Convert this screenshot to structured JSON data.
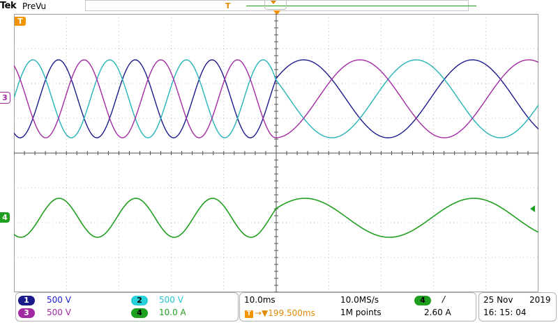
{
  "header": {
    "brand": "Tek",
    "mode": "PreVu",
    "record_trigger_glyph": "T"
  },
  "screen": {
    "trigger_badge": "T",
    "ch3_ref_label": "3",
    "ch4_ref_label": "4",
    "colors": {
      "ch1": "#1a1a8c",
      "ch2": "#25b3b8",
      "ch3": "#a12aa3",
      "ch4": "#1f9e1f",
      "trigger": "#f29300",
      "grid": "#b8b8b8"
    }
  },
  "channels": [
    {
      "id": "1",
      "scale": "500 V",
      "color": "#1a1a8c",
      "text_color": "#1a1acc",
      "badge_text_color": "#ffffff"
    },
    {
      "id": "2",
      "scale": "500 V",
      "color": "#25d0d6",
      "text_color": "#22c4cc",
      "badge_text_color": "#000000"
    },
    {
      "id": "3",
      "scale": "500 V",
      "color": "#a12aa3",
      "text_color": "#a12aa3",
      "badge_text_color": "#ffffff"
    },
    {
      "id": "4",
      "scale": "10.0 A",
      "color": "#1f9e1f",
      "text_color": "#1f9e1f",
      "badge_text_color": "#000000"
    }
  ],
  "horizontal": {
    "time_div": "10.0ms",
    "trigger_position": "199.500ms",
    "trigger_position_glyph": "T",
    "sample_rate": "10.0MS/s",
    "record_length": "1M points"
  },
  "trigger": {
    "source": "4",
    "slope_glyph": "/",
    "level": "2.60 A"
  },
  "datetime": {
    "date": "25 Nov",
    "year": "2019",
    "time": "16: 15: 04"
  }
}
